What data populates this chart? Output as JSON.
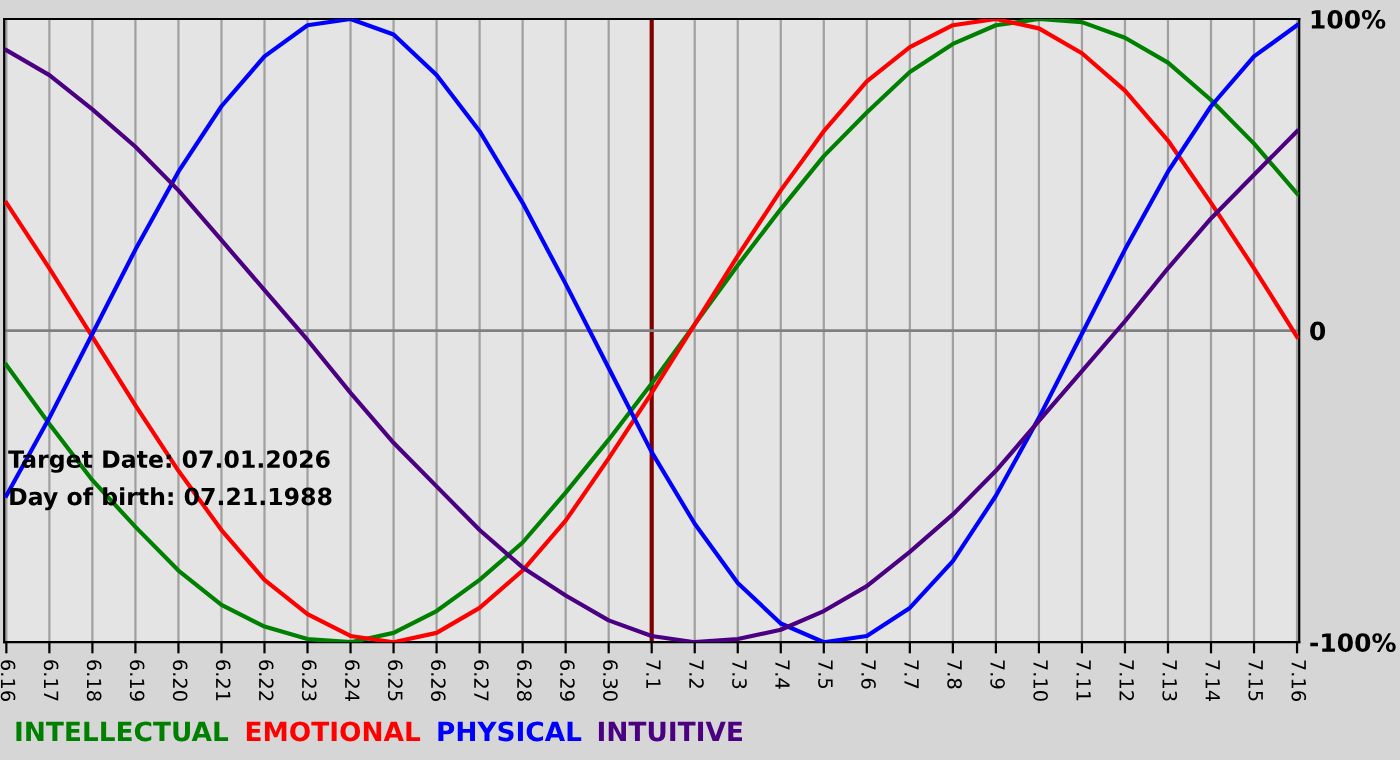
{
  "chart_data": {
    "type": "line",
    "categories": [
      "6.16",
      "6.17",
      "6.18",
      "6.19",
      "6.20",
      "6.21",
      "6.22",
      "6.23",
      "6.24",
      "6.25",
      "6.26",
      "6.27",
      "6.28",
      "6.29",
      "6.30",
      "7.1",
      "7.2",
      "7.3",
      "7.4",
      "7.5",
      "7.6",
      "7.7",
      "7.8",
      "7.9",
      "7.10",
      "7.11",
      "7.12",
      "7.13",
      "7.14",
      "7.15",
      "7.16"
    ],
    "series": [
      {
        "name": "INTELLECTUAL",
        "color": "#008000",
        "values": [
          -11,
          -30,
          -48,
          -63,
          -77,
          -88,
          -95,
          -99,
          -100,
          -97,
          -90,
          -80,
          -68,
          -52,
          -35,
          -17,
          2,
          21,
          39,
          56,
          70,
          83,
          92,
          98,
          100,
          99,
          94,
          86,
          74,
          60,
          44
        ]
      },
      {
        "name": "EMOTIONAL",
        "color": "#ff0000",
        "values": [
          41,
          20,
          -2,
          -24,
          -45,
          -64,
          -80,
          -91,
          -98,
          -100,
          -97,
          -89,
          -77,
          -61,
          -41,
          -20,
          2,
          24,
          45,
          64,
          80,
          91,
          98,
          100,
          97,
          89,
          77,
          61,
          41,
          20,
          -2
        ]
      },
      {
        "name": "PHYSICAL",
        "color": "#0000ff",
        "values": [
          -53,
          -28,
          -1,
          26,
          51,
          72,
          88,
          98,
          100,
          95,
          82,
          64,
          41,
          15,
          -12,
          -39,
          -62,
          -81,
          -94,
          -100,
          -98,
          -89,
          -74,
          -53,
          -28,
          -1,
          26,
          51,
          72,
          88,
          98
        ]
      },
      {
        "name": "INTUITIVE",
        "color": "#4b0082",
        "values": [
          90,
          82,
          71,
          59,
          45,
          29,
          13,
          -3,
          -20,
          -36,
          -50,
          -64,
          -76,
          -85,
          -93,
          -98,
          -100,
          -99,
          -96,
          -90,
          -82,
          -71,
          -59,
          -45,
          -29,
          -13,
          3,
          20,
          36,
          50,
          64
        ]
      }
    ],
    "ylim": [
      -100,
      100
    ],
    "yticks": [
      {
        "value": -100,
        "label": "-100%"
      },
      0,
      {
        "value": 100,
        "label": "100%"
      }
    ],
    "ref_lines": [
      {
        "axis": "x",
        "value": "7.1",
        "color": "#800000"
      },
      {
        "axis": "y",
        "value": 0,
        "color": "#808080"
      }
    ],
    "annotations": [
      "Target Date: 07.01.2026",
      "Day of birth: 07.21.1988"
    ],
    "grid": "x",
    "legend": "bottom",
    "marker": "none",
    "line_style": "solid"
  }
}
